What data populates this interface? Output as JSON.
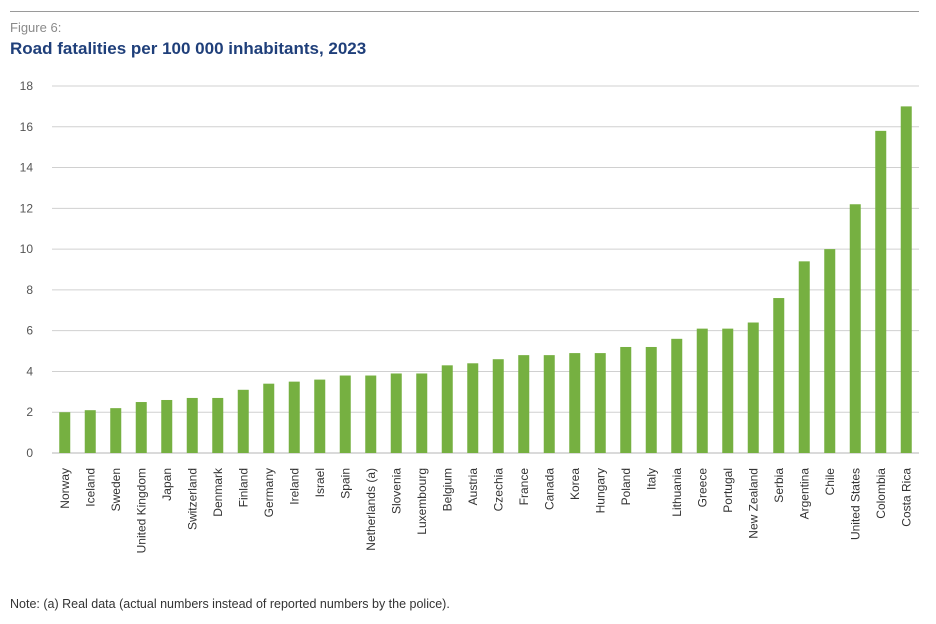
{
  "figure_label": "Figure 6:",
  "colors": {
    "bar": "#76b041",
    "grid": "#d0d0d0",
    "axis_text": "#555555",
    "title": "#1f3f7a"
  },
  "note": "Note: (a) Real data (actual numbers instead of reported numbers by the police).",
  "chart_data": {
    "type": "bar",
    "title": "Road fatalities per 100 000 inhabitants, 2023",
    "xlabel": "",
    "ylabel": "",
    "ylim": [
      0,
      18
    ],
    "yticks": [
      0,
      2,
      4,
      6,
      8,
      10,
      12,
      14,
      16,
      18
    ],
    "grid": true,
    "categories": [
      "Norway",
      "Iceland",
      "Sweden",
      "United Kingdom",
      "Japan",
      "Switzerland",
      "Denmark",
      "Finland",
      "Germany",
      "Ireland",
      "Israel",
      "Spain",
      "Netherlands (a)",
      "Slovenia",
      "Luxembourg",
      "Belgium",
      "Austria",
      "Czechia",
      "France",
      "Canada",
      "Korea",
      "Hungary",
      "Poland",
      "Italy",
      "Lithuania",
      "Greece",
      "Portugal",
      "New Zealand",
      "Serbia",
      "Argentina",
      "Chile",
      "United States",
      "Colombia",
      "Costa Rica"
    ],
    "values": [
      2.0,
      2.1,
      2.2,
      2.5,
      2.6,
      2.7,
      2.7,
      3.1,
      3.4,
      3.5,
      3.6,
      3.8,
      3.8,
      3.9,
      3.9,
      4.3,
      4.4,
      4.6,
      4.8,
      4.8,
      4.9,
      4.9,
      5.2,
      5.2,
      5.6,
      6.1,
      6.1,
      6.4,
      7.6,
      9.4,
      10.0,
      12.2,
      15.8,
      17.0
    ]
  }
}
